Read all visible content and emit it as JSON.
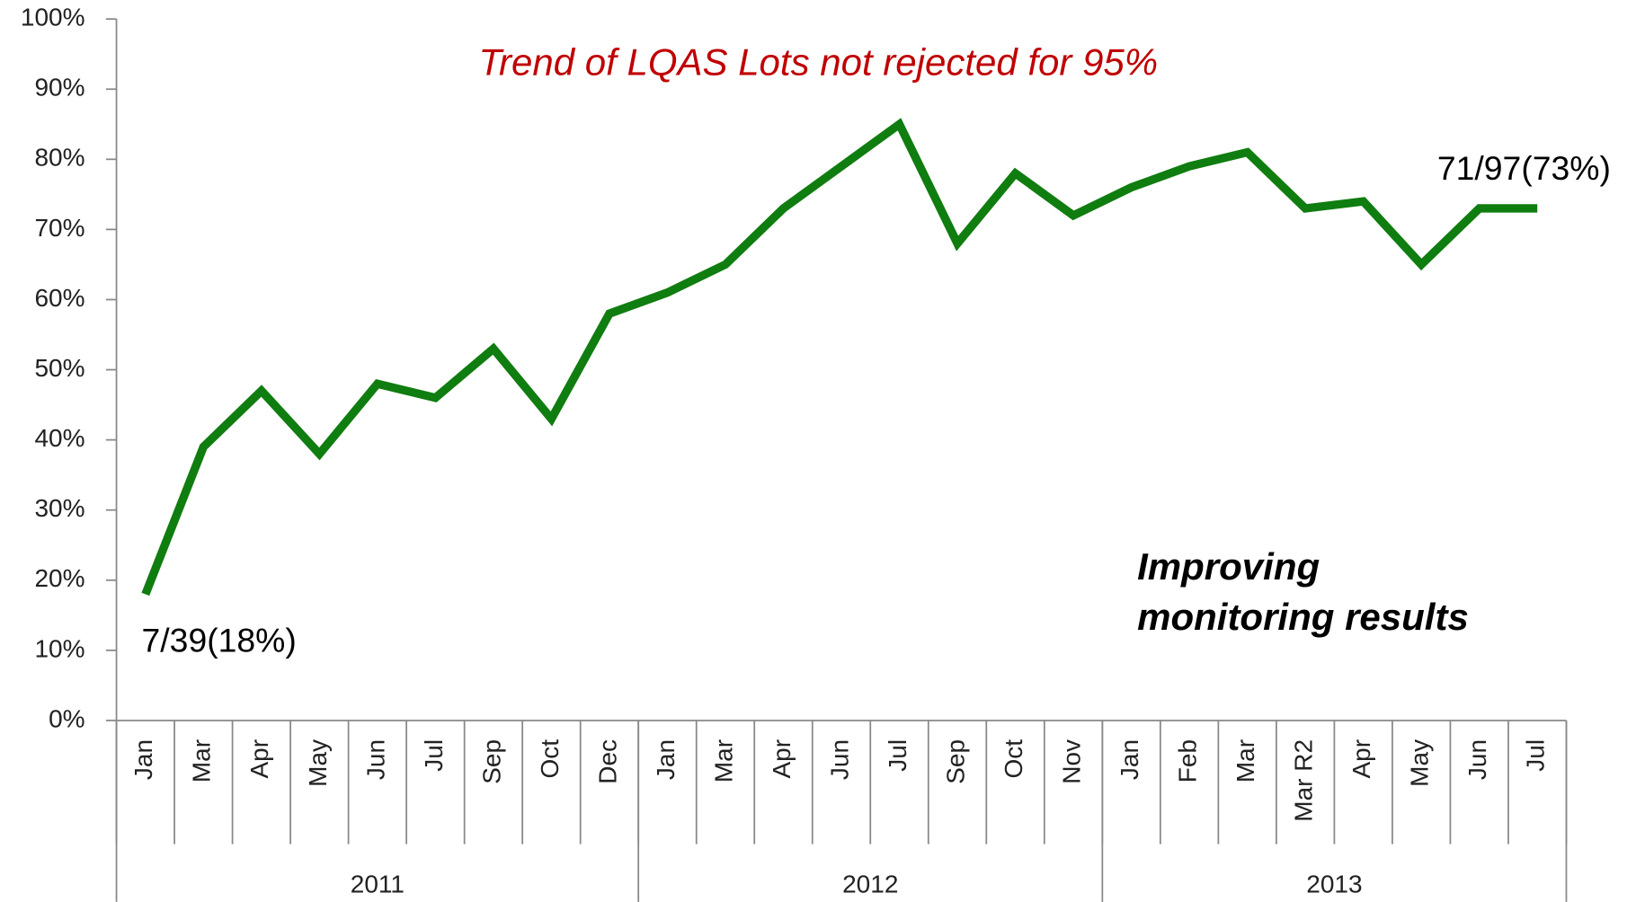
{
  "chart_data": {
    "type": "line",
    "title": "Trend of LQAS Lots not rejected for 95%",
    "categories": [
      "Jan",
      "Mar",
      "Apr",
      "May",
      "Jun",
      "Jul",
      "Sep",
      "Oct",
      "Dec",
      "Jan",
      "Mar",
      "Apr",
      "Jun",
      "Jul",
      "Sep",
      "Oct",
      "Nov",
      "Jan",
      "Feb",
      "Mar",
      "Mar R2",
      "Apr",
      "May",
      "Jun",
      "Jul"
    ],
    "category_groups": [
      {
        "label": "2011",
        "size": 9
      },
      {
        "label": "2012",
        "size": 8
      },
      {
        "label": "2013",
        "size": 8
      }
    ],
    "series": [
      {
        "color": "#0f7d0f",
        "values": [
          18,
          39,
          47,
          38,
          48,
          46,
          53,
          43,
          58,
          61,
          65,
          73,
          79,
          85,
          68,
          78,
          72,
          76,
          79,
          81,
          73,
          74,
          65,
          73,
          73
        ]
      }
    ],
    "ylim": [
      0,
      100
    ],
    "yticks": [
      {
        "value": 0,
        "label": "0%"
      },
      {
        "value": 10,
        "label": "10%"
      },
      {
        "value": 20,
        "label": "20%"
      },
      {
        "value": 30,
        "label": "30%"
      },
      {
        "value": 40,
        "label": "40%"
      },
      {
        "value": 50,
        "label": "50%"
      },
      {
        "value": 60,
        "label": "60%"
      },
      {
        "value": 70,
        "label": "70%"
      },
      {
        "value": 80,
        "label": "80%"
      },
      {
        "value": 90,
        "label": "90%"
      },
      {
        "value": 100,
        "label": "100%"
      }
    ],
    "annotations": [
      "7/39(18%)",
      "71/97(73%)",
      "Improving",
      "monitoring results"
    ]
  }
}
